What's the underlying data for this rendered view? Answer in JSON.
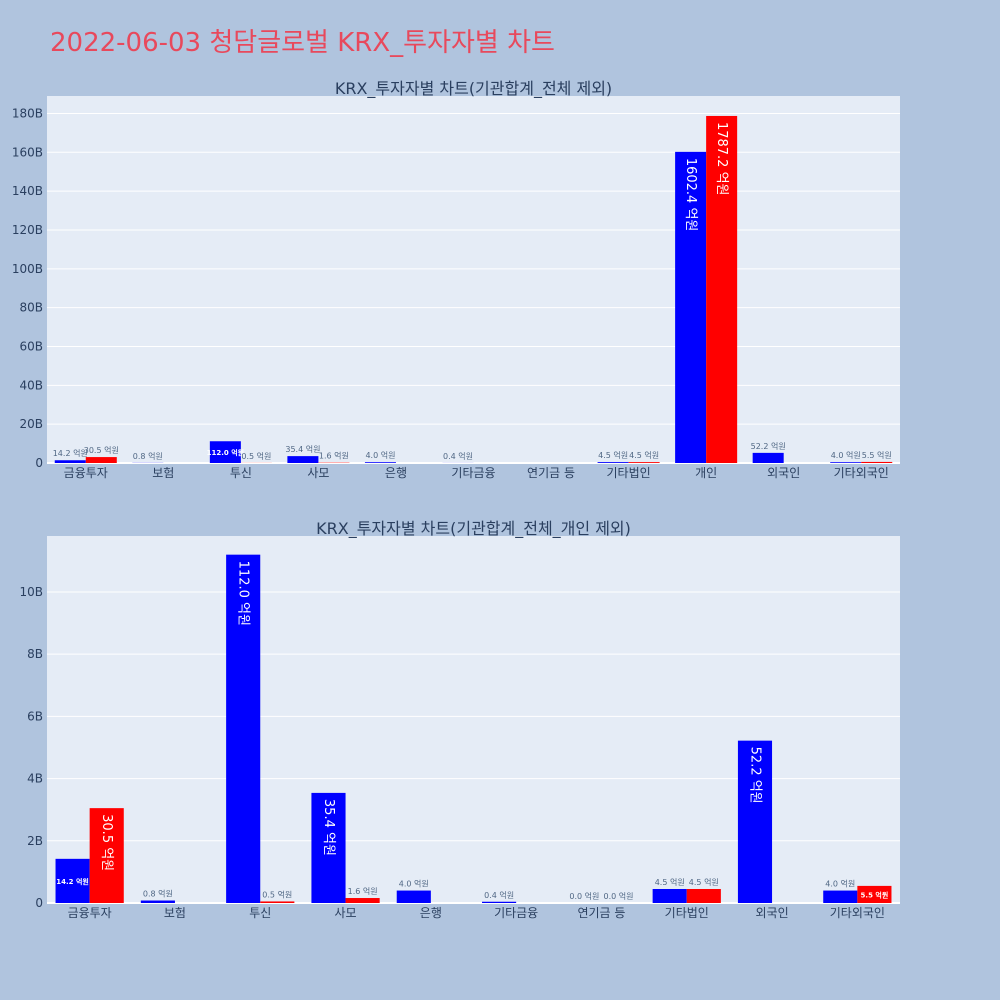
{
  "title": "2022-06-03 청담글로벌 KRX_투자자별 차트",
  "colors": {
    "buy": "#0000ff",
    "sell": "#ff0000",
    "plot_bg": "#e5ecf6",
    "page_bg": "#b0c4de",
    "title": "#e8495c"
  },
  "chart_data": [
    {
      "type": "bar",
      "title": "KRX_투자자별 차트(기관합계_전체 제외)",
      "categories": [
        "금융투자",
        "보험",
        "투신",
        "사모",
        "은행",
        "기타금융",
        "연기금 등",
        "기타법인",
        "개인",
        "외국인",
        "기타외국인"
      ],
      "series": [
        {
          "color": "#0000ff",
          "values": [
            1.42,
            0.08,
            11.2,
            3.54,
            0.4,
            0.04,
            0,
            0.45,
            160.24,
            5.22,
            0.4
          ],
          "labels": [
            "14.2 억원",
            "0.8 억원",
            "112.0 억원",
            "35.4 억원",
            "4.0 억원",
            "0.4 억원",
            "",
            "4.5 억원",
            "1602.4 억원",
            "52.2 억원",
            "4.0 억원"
          ]
        },
        {
          "color": "#ff0000",
          "values": [
            3.05,
            0,
            0.05,
            0.16,
            0,
            0,
            0,
            0.45,
            178.72,
            0,
            0.55
          ],
          "labels": [
            "30.5 억원",
            "",
            "0.5 억원",
            "1.6 억원",
            "",
            "",
            "",
            "4.5 억원",
            "1787.2 억원",
            "",
            "5.5 억원"
          ]
        }
      ],
      "yticks": [
        "0",
        "20B",
        "40B",
        "60B",
        "80B",
        "100B",
        "120B",
        "140B",
        "160B",
        "180B"
      ],
      "ytick_values": [
        0,
        20,
        40,
        60,
        80,
        100,
        120,
        140,
        160,
        180
      ],
      "ylim": [
        0,
        189
      ],
      "grid": true
    },
    {
      "type": "bar",
      "title": "KRX_투자자별 차트(기관합계_전체_개인 제외)",
      "categories": [
        "금융투자",
        "보험",
        "투신",
        "사모",
        "은행",
        "기타금융",
        "연기금 등",
        "기타법인",
        "외국인",
        "기타외국인"
      ],
      "series": [
        {
          "color": "#0000ff",
          "values": [
            1.42,
            0.08,
            11.2,
            3.54,
            0.4,
            0.04,
            0,
            0.45,
            5.22,
            0.4
          ],
          "labels": [
            "14.2 억원",
            "0.8 억원",
            "112.0 억원",
            "35.4 억원",
            "4.0 억원",
            "0.4 억원",
            "0.0 억원",
            "4.5 억원",
            "52.2 억원",
            "4.0 억원"
          ]
        },
        {
          "color": "#ff0000",
          "values": [
            3.05,
            0,
            0.05,
            0.16,
            0,
            0,
            0,
            0.45,
            0,
            0.55
          ],
          "labels": [
            "30.5 억원",
            "",
            "0.5 억원",
            "1.6 억원",
            "",
            "",
            "0.0 억원",
            "4.5 억원",
            "",
            "5.5 억원"
          ]
        }
      ],
      "yticks": [
        "0",
        "2B",
        "4B",
        "6B",
        "8B",
        "10B"
      ],
      "ytick_values": [
        0,
        2,
        4,
        6,
        8,
        10
      ],
      "ylim": [
        0,
        11.8
      ],
      "grid": true
    }
  ]
}
